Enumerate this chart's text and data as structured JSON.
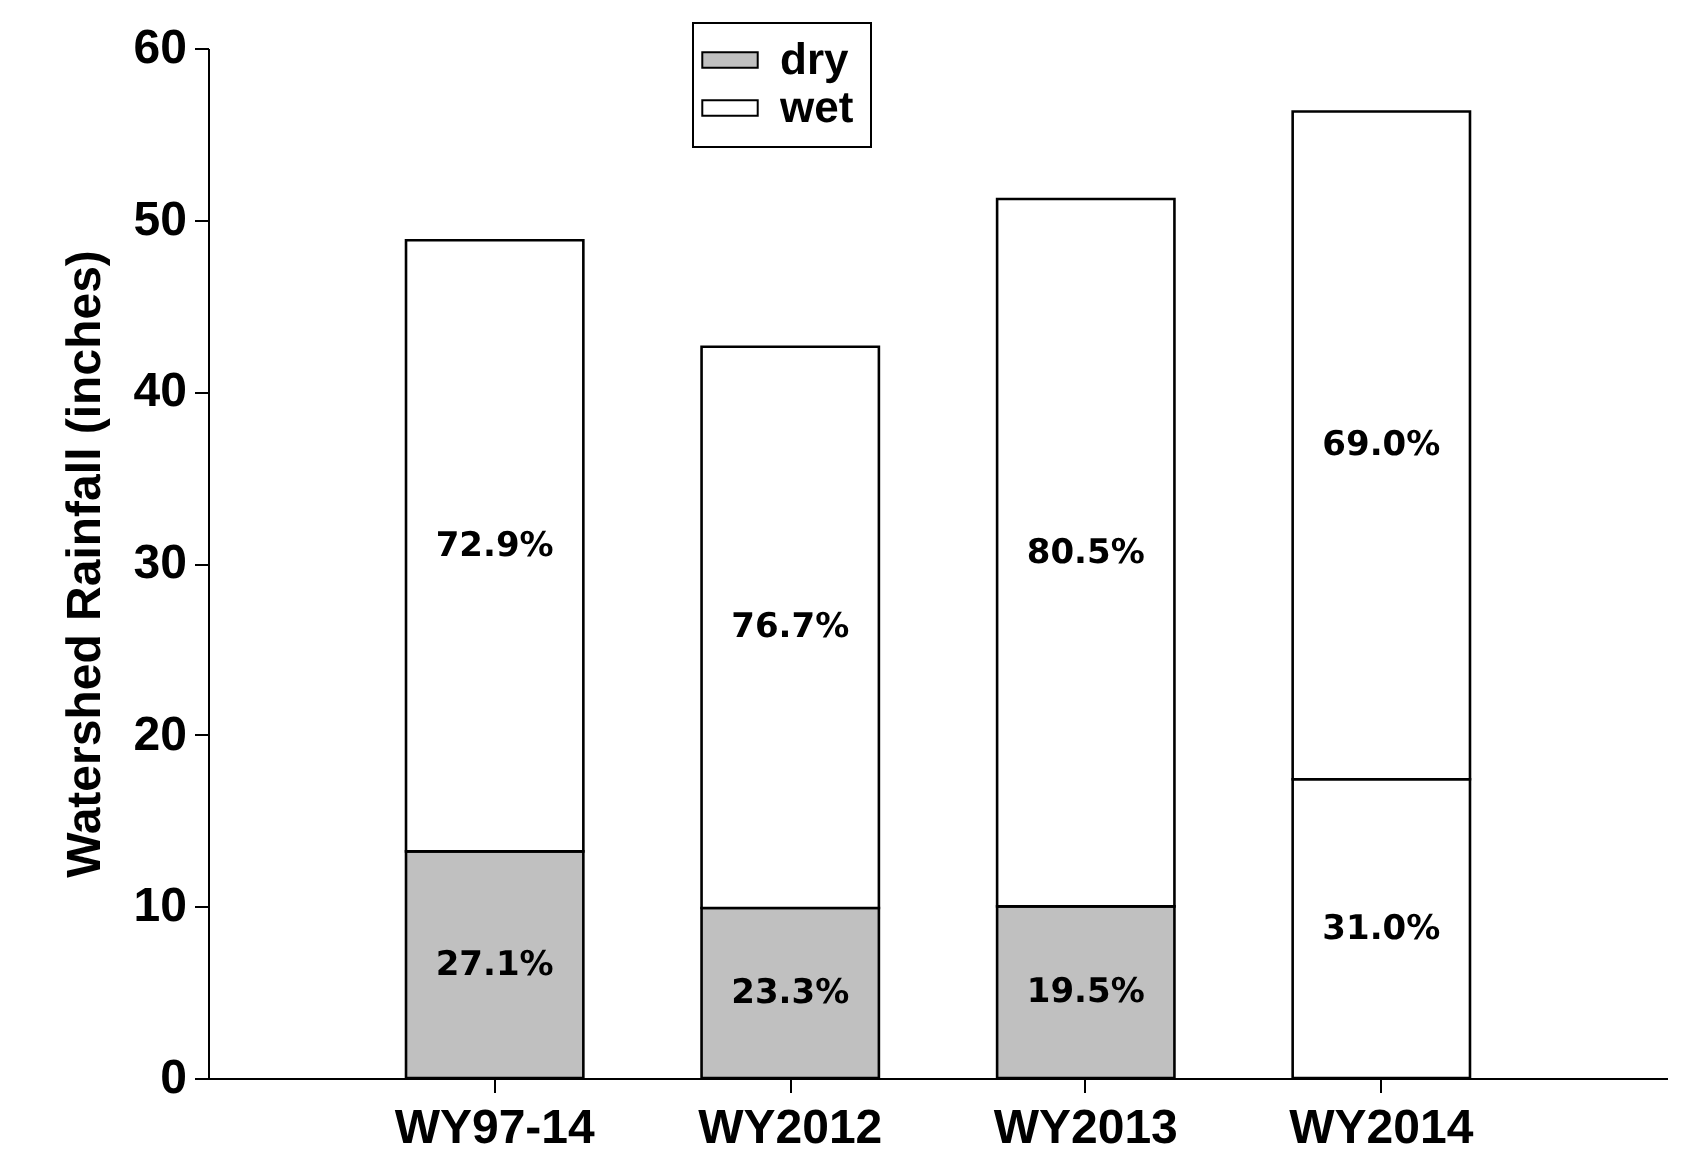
{
  "chart_data": {
    "type": "bar",
    "stacked": true,
    "ylabel": "Watershed Rainfall (inches)",
    "categories": [
      "WY97-14",
      "WY2012",
      "WY2013",
      "WY2014"
    ],
    "series": [
      {
        "name": "dry",
        "color": "#c0c0c0",
        "colors": [
          "#c0c0c0",
          "#c0c0c0",
          "#c0c0c0",
          "#ffffff"
        ],
        "values": [
          13.2,
          9.9,
          10.0,
          17.4
        ]
      },
      {
        "name": "wet",
        "color": "#ffffff",
        "values": [
          35.6,
          32.7,
          41.2,
          38.9
        ]
      }
    ],
    "annotations": [
      "27.1%",
      "23.3%",
      "19.5%",
      "31.0%",
      "72.9%",
      "76.7%",
      "80.5%",
      "69.0%"
    ],
    "ylim": [
      0,
      60
    ],
    "yticks": [
      0,
      10,
      20,
      30,
      40,
      50,
      60
    ],
    "grid": false,
    "legend": "top"
  }
}
